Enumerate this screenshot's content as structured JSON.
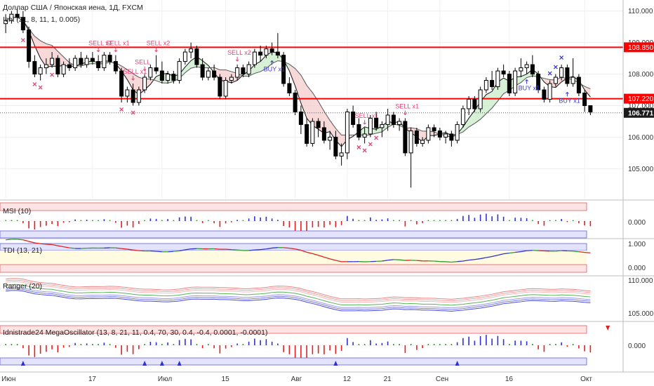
{
  "header": {
    "title": "Доллар США / Японская иена, 1Д, FXCM",
    "indicator": "Ichi (21, 8, 11, 1, 0.005)"
  },
  "colors": {
    "bull": "#ffffff",
    "bear": "#000000",
    "level": "#ff0000",
    "sell": "#e0457b",
    "buy": "#3a3ad6",
    "cloudUp": "#c8ecc8",
    "cloudDown": "#f6cccc"
  },
  "price_axis": {
    "ticks": [
      "110.000",
      "109.000",
      "108.000",
      "107.000",
      "106.000",
      "105.000"
    ],
    "tick_values": [
      110,
      109,
      108,
      107,
      106,
      105
    ],
    "ylim": [
      104.05,
      110.35
    ],
    "levels": [
      {
        "value": 108.85,
        "label": "108.850"
      },
      {
        "value": 107.22,
        "label": "107.220"
      }
    ],
    "last": {
      "value": 106.771,
      "label": "106.771"
    }
  },
  "time_axis": {
    "labels": [
      "Июн",
      "17",
      "Июл",
      "15",
      "Авг",
      "12",
      "21",
      "Сен",
      "16",
      "Окт"
    ],
    "label_index": [
      0,
      15,
      27,
      38,
      50,
      59,
      66,
      75,
      87,
      100
    ]
  },
  "chart_data": {
    "type": "candlestick",
    "ohlc": [
      [
        109.6,
        109.9,
        109.3,
        109.7
      ],
      [
        109.7,
        110.0,
        109.6,
        109.9
      ],
      [
        109.9,
        110.1,
        109.7,
        109.8
      ],
      [
        109.8,
        110.0,
        109.3,
        109.4
      ],
      [
        109.4,
        109.5,
        108.2,
        108.4
      ],
      [
        108.4,
        108.6,
        107.9,
        108.0
      ],
      [
        108.0,
        108.3,
        107.8,
        108.2
      ],
      [
        108.2,
        108.5,
        108.0,
        108.3
      ],
      [
        108.3,
        108.7,
        108.2,
        108.5
      ],
      [
        108.5,
        108.6,
        107.9,
        108.0
      ],
      [
        108.0,
        108.4,
        107.9,
        108.3
      ],
      [
        108.3,
        108.5,
        108.1,
        108.2
      ],
      [
        108.2,
        108.6,
        108.1,
        108.5
      ],
      [
        108.5,
        108.7,
        108.2,
        108.3
      ],
      [
        108.3,
        108.6,
        108.2,
        108.5
      ],
      [
        108.5,
        108.7,
        108.3,
        108.4
      ],
      [
        108.4,
        108.6,
        108.1,
        108.2
      ],
      [
        108.2,
        108.7,
        108.1,
        108.6
      ],
      [
        108.6,
        108.7,
        108.3,
        108.4
      ],
      [
        108.4,
        108.6,
        108.0,
        108.1
      ],
      [
        108.1,
        108.2,
        107.1,
        107.3
      ],
      [
        107.3,
        107.6,
        107.1,
        107.5
      ],
      [
        107.5,
        107.7,
        107.0,
        107.1
      ],
      [
        107.1,
        107.6,
        107.0,
        107.5
      ],
      [
        107.5,
        108.0,
        107.4,
        107.9
      ],
      [
        107.9,
        108.3,
        107.8,
        108.2
      ],
      [
        108.2,
        108.6,
        108.0,
        108.1
      ],
      [
        108.1,
        108.4,
        107.7,
        107.8
      ],
      [
        107.8,
        108.1,
        107.7,
        108.0
      ],
      [
        108.0,
        108.1,
        107.7,
        107.8
      ],
      [
        107.8,
        108.5,
        107.7,
        108.4
      ],
      [
        108.4,
        108.8,
        108.3,
        108.7
      ],
      [
        108.7,
        109.0,
        108.5,
        108.8
      ],
      [
        108.8,
        108.9,
        108.2,
        108.3
      ],
      [
        108.3,
        108.5,
        107.8,
        107.9
      ],
      [
        107.9,
        108.2,
        107.8,
        108.1
      ],
      [
        108.1,
        108.3,
        107.8,
        107.9
      ],
      [
        107.9,
        108.0,
        107.2,
        107.3
      ],
      [
        107.3,
        107.9,
        107.2,
        107.8
      ],
      [
        107.8,
        108.0,
        107.7,
        107.9
      ],
      [
        107.9,
        108.3,
        107.8,
        108.2
      ],
      [
        108.2,
        108.3,
        107.9,
        108.0
      ],
      [
        108.0,
        108.4,
        107.9,
        108.3
      ],
      [
        108.3,
        108.8,
        108.2,
        108.7
      ],
      [
        108.7,
        108.9,
        108.4,
        108.6
      ],
      [
        108.6,
        108.9,
        108.5,
        108.8
      ],
      [
        108.8,
        109.0,
        108.6,
        108.7
      ],
      [
        108.7,
        109.3,
        108.5,
        108.6
      ],
      [
        108.6,
        108.7,
        107.6,
        107.7
      ],
      [
        107.7,
        107.9,
        107.3,
        107.4
      ],
      [
        107.4,
        107.5,
        106.7,
        106.8
      ],
      [
        106.8,
        107.0,
        106.1,
        106.4
      ],
      [
        106.4,
        106.6,
        105.7,
        105.8
      ],
      [
        105.8,
        106.6,
        105.7,
        106.5
      ],
      [
        106.5,
        106.6,
        106.0,
        106.3
      ],
      [
        106.3,
        106.5,
        105.8,
        105.9
      ],
      [
        105.9,
        106.2,
        105.6,
        106.0
      ],
      [
        106.0,
        106.2,
        105.3,
        105.4
      ],
      [
        105.4,
        105.8,
        105.1,
        105.5
      ],
      [
        105.5,
        106.9,
        105.3,
        106.8
      ],
      [
        106.8,
        107.0,
        106.3,
        106.4
      ],
      [
        106.4,
        106.6,
        105.9,
        106.0
      ],
      [
        106.0,
        106.3,
        105.8,
        106.1
      ],
      [
        106.1,
        106.7,
        106.0,
        106.6
      ],
      [
        106.6,
        106.8,
        106.2,
        106.3
      ],
      [
        106.3,
        106.5,
        106.0,
        106.4
      ],
      [
        106.4,
        106.9,
        106.2,
        106.7
      ],
      [
        106.7,
        106.8,
        106.3,
        106.4
      ],
      [
        106.4,
        106.6,
        106.2,
        106.5
      ],
      [
        106.5,
        106.6,
        105.4,
        105.5
      ],
      [
        105.5,
        106.3,
        104.4,
        106.2
      ],
      [
        106.2,
        106.3,
        105.7,
        105.8
      ],
      [
        105.8,
        106.0,
        105.7,
        105.9
      ],
      [
        105.9,
        106.4,
        105.8,
        106.3
      ],
      [
        106.3,
        106.4,
        106.0,
        106.2
      ],
      [
        106.2,
        106.3,
        105.9,
        106.0
      ],
      [
        106.0,
        106.2,
        105.8,
        106.1
      ],
      [
        106.1,
        106.2,
        105.7,
        105.9
      ],
      [
        105.9,
        106.5,
        105.8,
        106.4
      ],
      [
        106.4,
        107.0,
        106.3,
        106.9
      ],
      [
        106.9,
        107.3,
        106.7,
        107.2
      ],
      [
        107.2,
        107.3,
        106.8,
        106.9
      ],
      [
        106.9,
        107.6,
        106.8,
        107.5
      ],
      [
        107.5,
        107.9,
        107.4,
        107.8
      ],
      [
        107.8,
        108.1,
        107.5,
        107.6
      ],
      [
        107.6,
        108.2,
        107.5,
        108.1
      ],
      [
        108.1,
        108.3,
        107.9,
        108.0
      ],
      [
        108.0,
        108.1,
        107.3,
        107.4
      ],
      [
        107.4,
        108.2,
        107.3,
        108.1
      ],
      [
        108.1,
        108.5,
        107.9,
        108.2
      ],
      [
        108.2,
        108.4,
        108.0,
        108.3
      ],
      [
        108.3,
        108.6,
        107.9,
        108.0
      ],
      [
        108.0,
        108.1,
        107.4,
        107.5
      ],
      [
        107.5,
        107.6,
        107.1,
        107.2
      ],
      [
        107.2,
        107.8,
        107.1,
        107.7
      ],
      [
        107.7,
        108.0,
        107.6,
        107.9
      ],
      [
        107.9,
        108.3,
        107.8,
        108.2
      ],
      [
        108.2,
        108.3,
        107.6,
        107.7
      ],
      [
        107.7,
        108.5,
        107.6,
        107.9
      ],
      [
        107.9,
        108.0,
        107.3,
        107.4
      ],
      [
        107.4,
        107.5,
        106.8,
        107.0
      ],
      [
        107.0,
        107.0,
        106.7,
        106.8
      ]
    ],
    "signals": {
      "sell": [
        {
          "i": 16,
          "text": "SELL x1"
        },
        {
          "i": 19,
          "text": "SELL x1"
        },
        {
          "i": 22,
          "text": "SELL x1"
        },
        {
          "i": 24,
          "text": "SELL"
        },
        {
          "i": 26,
          "text": "SELL x2"
        },
        {
          "i": 40,
          "text": "SELL x2"
        },
        {
          "i": 62,
          "text": "SELL x1"
        },
        {
          "i": 69,
          "text": "SELL x1"
        }
      ],
      "buy": [
        {
          "i": 46,
          "text": "BUY x1"
        },
        {
          "i": 90,
          "text": "BUY x1"
        },
        {
          "i": 97,
          "text": "BUY x1"
        }
      ],
      "x_below": [
        3,
        5,
        6,
        8,
        20,
        22,
        61,
        62,
        63,
        64
      ],
      "x_above": [
        94,
        95,
        96
      ]
    }
  },
  "panes": {
    "msi": {
      "title": "MSI (10)",
      "axis_label": "0.000"
    },
    "tdi": {
      "title": "TDI (13, 21)",
      "axis_labels": [
        "1.000",
        "0.000"
      ]
    },
    "ranger": {
      "title": "Ranger (20)",
      "axis_labels": [
        "110.000",
        "105.000"
      ]
    },
    "mega": {
      "title": "Idnistrade24 MegaOscillator (13, 8, 21, 11, 0.4, 70, 30, 0.4, -0.4, 0.0001, -0.0001)",
      "axis_label": "0.000"
    }
  }
}
